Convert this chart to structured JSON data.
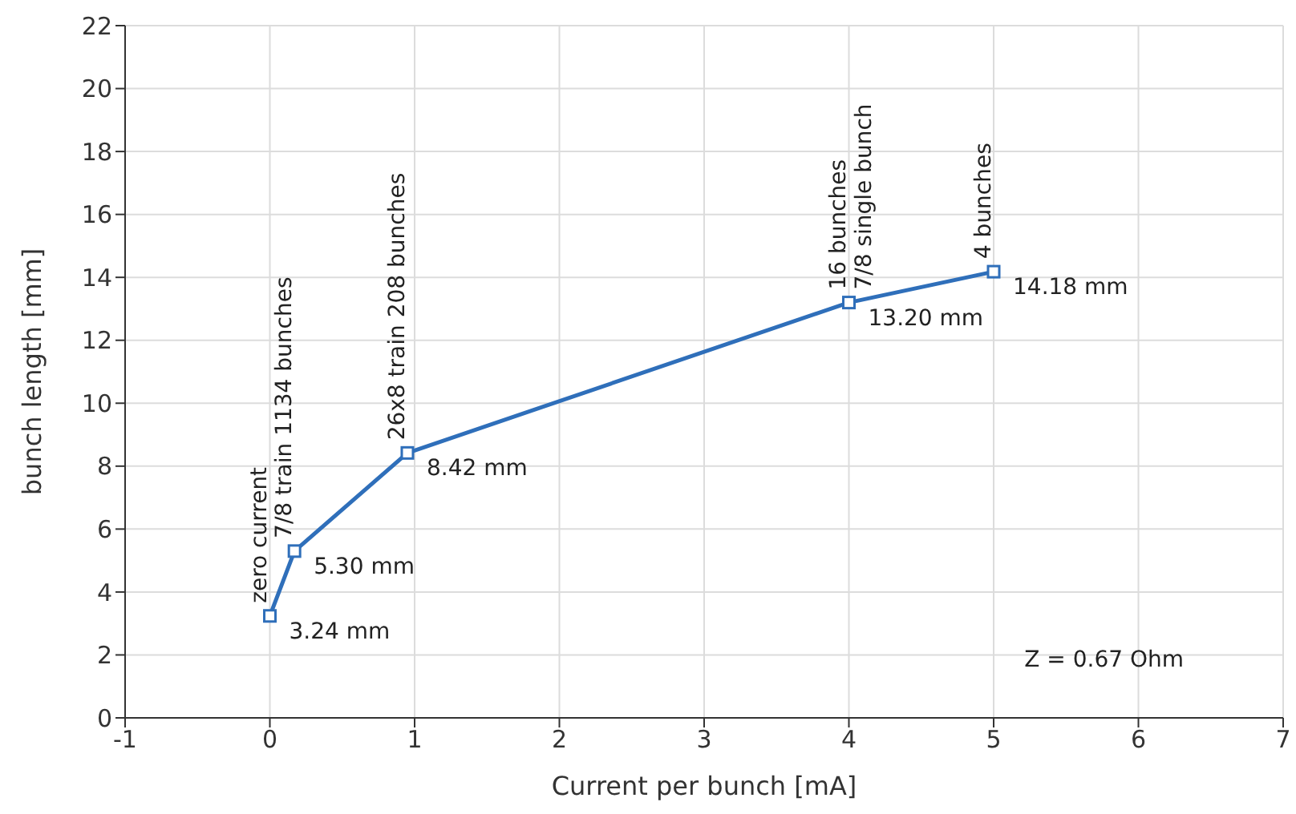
{
  "chart_data": {
    "type": "line",
    "xlabel": "Current per bunch [mA]",
    "ylabel": "bunch length [mm]",
    "x": [
      0,
      0.17,
      0.95,
      4,
      5
    ],
    "series": [
      {
        "color": "#2f6fba",
        "values": [
          3.24,
          5.3,
          8.42,
          13.2,
          14.18
        ],
        "value_labels": [
          "3.24 mm",
          "5.30 mm",
          "8.42 mm",
          "13.20 mm",
          "14.18 mm"
        ]
      }
    ],
    "xlim": [
      -1,
      7
    ],
    "xticks": [
      -1,
      0,
      1,
      2,
      3,
      4,
      5,
      6,
      7
    ],
    "ylim": [
      0,
      22
    ],
    "yticks": [
      0,
      2,
      4,
      6,
      8,
      10,
      12,
      14,
      16,
      18,
      20,
      22
    ],
    "grid": true,
    "marker": "square",
    "line_style": "solid",
    "legend": false,
    "annotations": [
      {
        "text": "zero current",
        "x": 0,
        "y": 3.24
      },
      {
        "text": "7/8 train 1134 bunches",
        "x": 0.17,
        "y": 5.3
      },
      {
        "text": "26x8 train 208 bunches",
        "x": 0.95,
        "y": 8.42
      },
      {
        "text": "16 bunches",
        "x": 4,
        "y": 13.2
      },
      {
        "text": "7/8 single bunch",
        "x": 4,
        "y": 13.2
      },
      {
        "text": "4 bunches",
        "x": 5,
        "y": 14.18
      },
      "Z = 0.67 Ohm"
    ]
  }
}
